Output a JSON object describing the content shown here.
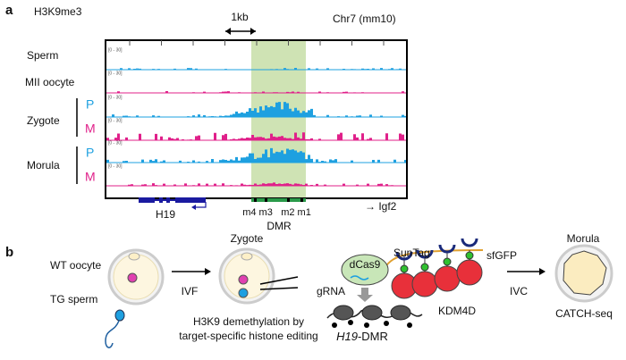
{
  "panel_a": {
    "label": "a",
    "mark": "H3K9me3",
    "scale": "1kb",
    "locus": "Chr7 (mm10)",
    "samples": [
      {
        "name": "Sperm",
        "tracks": [
          {
            "range": "[0 - 30]"
          }
        ]
      },
      {
        "name": "MII oocyte",
        "tracks": [
          {
            "range": "[0 - 30]"
          }
        ]
      },
      {
        "name": "Zygote",
        "tracks": [
          {
            "strand": "P",
            "range": "[0 - 30]"
          },
          {
            "strand": "M",
            "range": "[0 - 30]"
          }
        ]
      },
      {
        "name": "Morula",
        "tracks": [
          {
            "strand": "P",
            "range": "[0 - 30]"
          },
          {
            "strand": "M",
            "range": "[0 - 30]"
          }
        ]
      }
    ],
    "gene": "H19",
    "dmr_sites": [
      "m4 m3",
      "m2 m1"
    ],
    "dmr": "DMR",
    "neighbor": "→ Igf2"
  },
  "panel_b": {
    "label": "b",
    "oocyte": "WT oocyte",
    "sperm": "TG sperm",
    "step1": "IVF",
    "zygote": "Zygote",
    "editing": [
      "H3K9 demethylation by",
      "target-specific histone editing"
    ],
    "dcas9": "dCas9",
    "grna": "gRNA",
    "suntag": "SunTag",
    "sfgfp": "sfGFP",
    "kdm4d": "KDM4D",
    "target_gene": "H19",
    "target_suffix": "-DMR",
    "step2": "IVC",
    "morula": "Morula",
    "assay": "CATCH-seq"
  }
}
